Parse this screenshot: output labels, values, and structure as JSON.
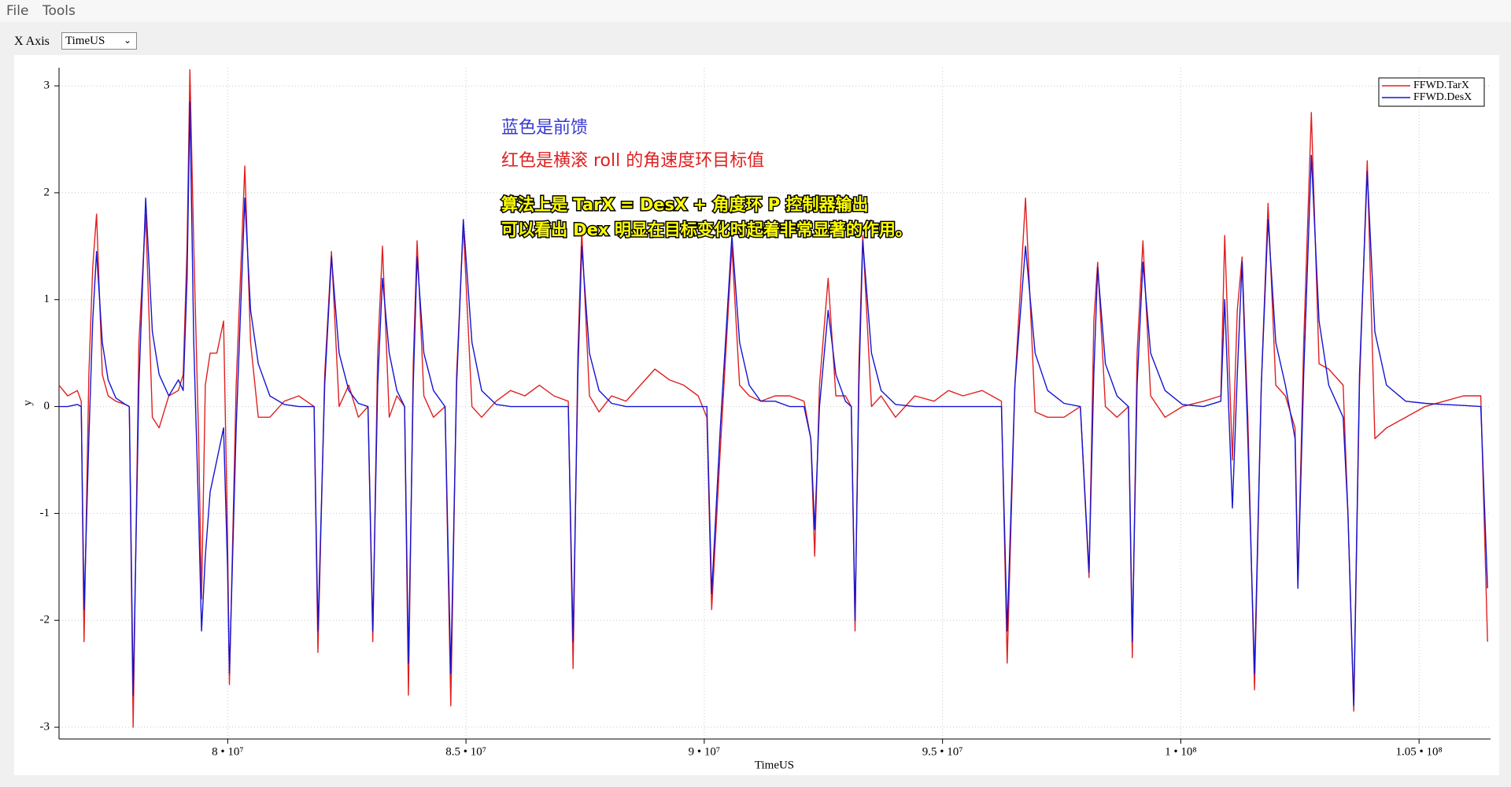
{
  "menu": [
    "File",
    "Tools"
  ],
  "x_axis_selector": {
    "label": "X Axis",
    "value": "TimeUS"
  },
  "chart_data": {
    "type": "line",
    "x_label": "TimeUS",
    "y_label": "y",
    "legend": "upper right",
    "grid": true,
    "xlim": [
      76460000,
      106500000
    ],
    "ylim": [
      -3.11,
      3.17
    ],
    "xticks": [
      {
        "value": 80000000,
        "label": "8 • 10⁷"
      },
      {
        "value": 85000000,
        "label": "8.5 • 10⁷"
      },
      {
        "value": 90000000,
        "label": "9 • 10⁷"
      },
      {
        "value": 95000000,
        "label": "9.5 • 10⁷"
      },
      {
        "value": 100000000,
        "label": "1 • 10⁸"
      },
      {
        "value": 105000000,
        "label": "1.05 • 10⁸"
      }
    ],
    "yticks": [
      -3,
      -2,
      -1,
      0,
      1,
      2,
      3
    ],
    "annotations": [
      {
        "text": "蓝色是前馈",
        "color": "#3a3ad0"
      },
      {
        "text": "红色是横滚 roll 的角速度环目标值",
        "color": "#e02020"
      },
      {
        "text": "算法上是 TarX = DesX + 角度环 P 控制器输出",
        "color": "#ffff00",
        "outline": "#000000"
      },
      {
        "text": "可以看出 Dex 明显在目标变化时起着非常显著的作用。",
        "color": "#ffff00",
        "outline": "#000000"
      }
    ],
    "x": [
      76460000,
      76642000,
      76844000,
      76925000,
      76985000,
      77086000,
      77167000,
      77248000,
      77369000,
      77490000,
      77652000,
      77854000,
      77935000,
      78015000,
      78137000,
      78278000,
      78419000,
      78561000,
      78763000,
      78965000,
      79066000,
      79147000,
      79207000,
      79288000,
      79389000,
      79450000,
      79530000,
      79631000,
      79773000,
      79914000,
      79995000,
      80035000,
      80177000,
      80359000,
      80480000,
      80641000,
      80884000,
      81187000,
      81490000,
      81813000,
      81894000,
      82035000,
      82177000,
      82338000,
      82540000,
      82742000,
      82944000,
      83045000,
      83146000,
      83247000,
      83389000,
      83550000,
      83712000,
      83793000,
      83894000,
      83974000,
      84116000,
      84318000,
      84560000,
      84681000,
      84803000,
      84944000,
      85126000,
      85328000,
      85631000,
      85934000,
      86237000,
      86540000,
      86843000,
      87146000,
      87247000,
      87348000,
      87429000,
      87590000,
      87792000,
      88055000,
      88358000,
      88661000,
      88964000,
      89267000,
      89570000,
      89873000,
      90055000,
      90156000,
      90337000,
      90580000,
      90741000,
      90943000,
      91186000,
      91489000,
      91792000,
      92095000,
      92236000,
      92317000,
      92418000,
      92600000,
      92761000,
      92963000,
      93085000,
      93165000,
      93246000,
      93327000,
      93509000,
      93711000,
      94014000,
      94418000,
      94822000,
      95125000,
      95428000,
      95832000,
      96236000,
      96357000,
      96519000,
      96741000,
      96943000,
      97205000,
      97549000,
      97892000,
      98074000,
      98175000,
      98256000,
      98417000,
      98660000,
      98902000,
      98983000,
      99084000,
      99205000,
      99367000,
      99670000,
      100033000,
      100478000,
      100841000,
      100922000,
      101084000,
      101185000,
      101286000,
      101407000,
      101548000,
      101690000,
      101831000,
      101993000,
      102195000,
      102397000,
      102457000,
      102579000,
      102740000,
      102902000,
      103104000,
      103407000,
      103508000,
      103629000,
      103750000,
      103912000,
      104073000,
      104316000,
      104720000,
      105124000,
      105528000,
      105932000,
      106295000,
      106437000
    ],
    "series": [
      {
        "name": "FFWD.TarX",
        "color": "#e02020",
        "values": [
          0.2,
          0.1,
          0.15,
          0.05,
          -2.2,
          0.3,
          1.3,
          1.8,
          0.3,
          0.1,
          0.05,
          0.02,
          0,
          -3.0,
          0.6,
          1.8,
          -0.1,
          -0.2,
          0.1,
          0.15,
          0.3,
          1.5,
          3.15,
          1.5,
          -0.3,
          -1.8,
          0.2,
          0.5,
          0.5,
          0.8,
          -1.2,
          -2.6,
          0.2,
          2.25,
          0.6,
          -0.1,
          -0.1,
          0.05,
          0.1,
          0,
          -2.3,
          0.3,
          1.45,
          0.0,
          0.2,
          -0.1,
          0,
          -2.2,
          0.5,
          1.5,
          -0.1,
          0.1,
          0,
          -2.7,
          0.4,
          1.55,
          0.1,
          -0.1,
          0,
          -2.8,
          0.3,
          1.7,
          0.0,
          -0.1,
          0.05,
          0.15,
          0.1,
          0.2,
          0.1,
          0.05,
          -2.45,
          0.5,
          1.65,
          0.1,
          -0.05,
          0.1,
          0.05,
          0.2,
          0.35,
          0.25,
          0.2,
          0.1,
          -0.1,
          -1.9,
          -0.4,
          1.5,
          0.2,
          0.1,
          0.05,
          0.1,
          0.1,
          0.05,
          -0.3,
          -1.4,
          0.2,
          1.2,
          0.1,
          0.1,
          0,
          -2.1,
          0.4,
          1.6,
          0.0,
          0.1,
          -0.1,
          0.1,
          0.05,
          0.15,
          0.1,
          0.15,
          0.05,
          -2.4,
          0.2,
          1.95,
          -0.05,
          -0.1,
          -0.1,
          0,
          -1.6,
          0.8,
          1.35,
          0.0,
          -0.1,
          0,
          -2.35,
          0.5,
          1.55,
          0.1,
          -0.1,
          0.0,
          0.05,
          0.1,
          1.6,
          -0.5,
          0.9,
          1.4,
          -0.1,
          -2.65,
          0.2,
          1.9,
          0.2,
          0.1,
          -0.2,
          -1.65,
          0.6,
          2.75,
          0.4,
          0.35,
          0.2,
          -1.0,
          -2.85,
          0.2,
          2.3,
          -0.3,
          -0.2,
          -0.1,
          0.0,
          0.05,
          0.1,
          0.1,
          -2.2
        ]
      },
      {
        "name": "FFWD.DesX",
        "color": "#1414d2",
        "values": [
          0,
          0,
          0.02,
          0,
          -1.9,
          -0.3,
          0.8,
          1.45,
          0.6,
          0.25,
          0.08,
          0.02,
          0,
          -2.7,
          0.2,
          1.95,
          0.7,
          0.3,
          0.1,
          0.25,
          0.15,
          1.2,
          2.85,
          0.6,
          -1.0,
          -2.1,
          -1.4,
          -0.8,
          -0.5,
          -0.2,
          -1.5,
          -2.5,
          -0.2,
          1.95,
          0.9,
          0.4,
          0.1,
          0.02,
          0,
          0,
          -2.1,
          0.2,
          1.4,
          0.5,
          0.15,
          0.03,
          0,
          -2.1,
          0.2,
          1.2,
          0.5,
          0.15,
          0,
          -2.4,
          0.2,
          1.4,
          0.5,
          0.15,
          0,
          -2.5,
          0.2,
          1.75,
          0.6,
          0.15,
          0.02,
          0.0,
          0.0,
          0.0,
          0.0,
          0.0,
          -2.2,
          0.3,
          1.5,
          0.5,
          0.15,
          0.03,
          0,
          0,
          0,
          0,
          0,
          0,
          0,
          -1.75,
          -0.2,
          1.6,
          0.6,
          0.2,
          0.05,
          0.05,
          0,
          0,
          -0.3,
          -1.15,
          0,
          0.9,
          0.3,
          0.05,
          0,
          -2.0,
          0.2,
          1.55,
          0.5,
          0.15,
          0.02,
          0,
          0,
          0,
          0,
          0,
          0,
          -2.1,
          0.2,
          1.5,
          0.5,
          0.15,
          0.03,
          0,
          -1.55,
          0.3,
          1.3,
          0.4,
          0.1,
          0,
          -2.2,
          0.2,
          1.35,
          0.5,
          0.15,
          0.02,
          0.0,
          0.05,
          1.0,
          -0.95,
          0.3,
          1.35,
          -0.3,
          -2.5,
          0.2,
          1.75,
          0.6,
          0.2,
          -0.3,
          -1.7,
          0.3,
          2.35,
          0.8,
          0.2,
          -0.1,
          -1.0,
          -2.8,
          0.3,
          2.2,
          0.7,
          0.2,
          0.05,
          0.03,
          0.02,
          0.01,
          0,
          -1.7
        ]
      }
    ]
  }
}
